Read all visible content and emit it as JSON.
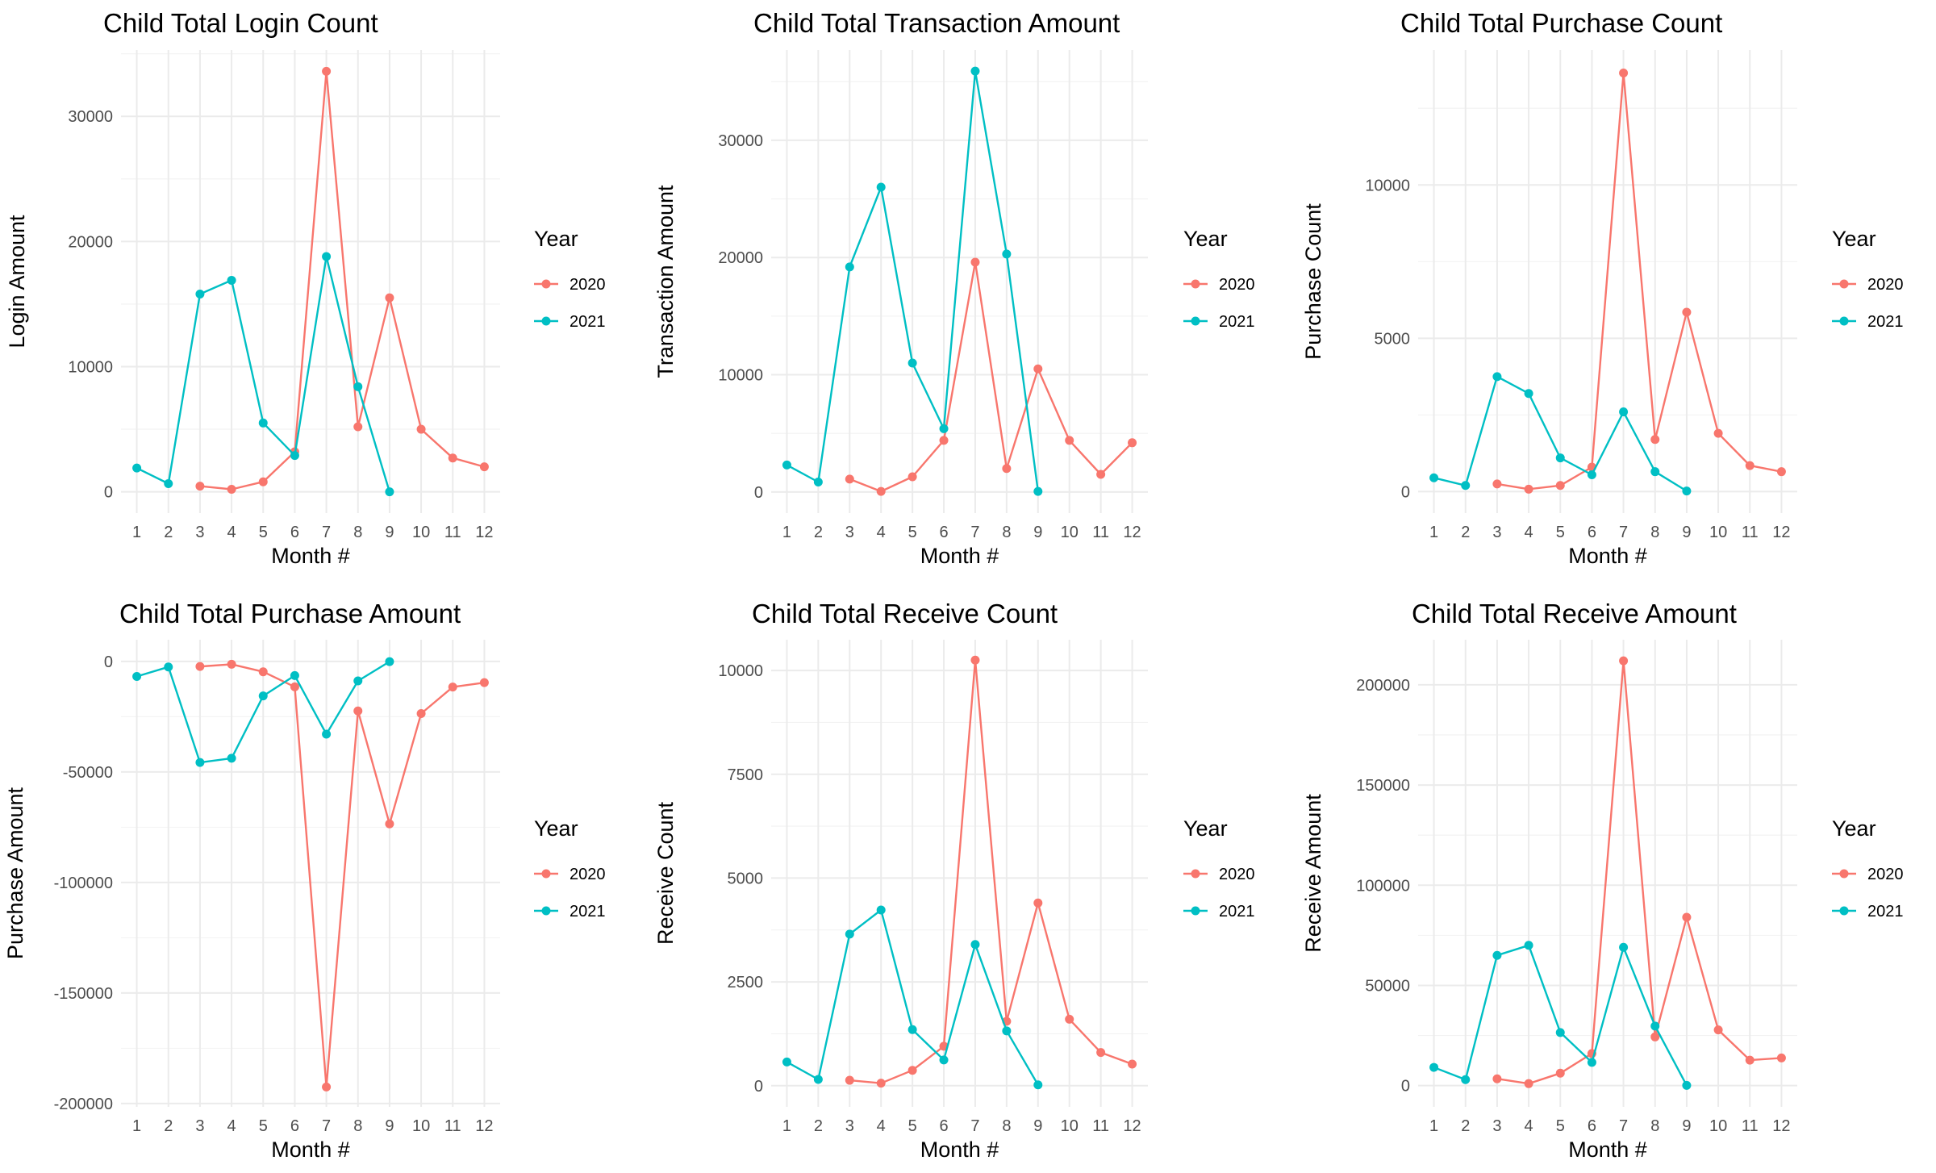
{
  "chart_data": [
    {
      "type": "line",
      "title": "Child Total Login Count",
      "xlabel": "Month #",
      "ylabel": "Login Amount",
      "x": [
        1,
        2,
        3,
        4,
        5,
        6,
        7,
        8,
        9,
        10,
        11,
        12
      ],
      "xlim": [
        0.5,
        12.5
      ],
      "ylim": [
        -1700,
        35300
      ],
      "yticks": [
        0,
        10000,
        20000,
        30000
      ],
      "ytick_labels": [
        "0",
        "10000",
        "20000",
        "30000"
      ],
      "legend": {
        "title": "Year",
        "position": "right"
      },
      "series": [
        {
          "name": "2020",
          "color": "#F8766D",
          "x": [
            3,
            4,
            5,
            6,
            7,
            8,
            9,
            10,
            11,
            12
          ],
          "values": [
            450,
            200,
            800,
            3200,
            33600,
            5200,
            15500,
            5000,
            2700,
            2000
          ]
        },
        {
          "name": "2021",
          "color": "#00BFC4",
          "x": [
            1,
            2,
            3,
            4,
            5,
            6,
            7,
            8,
            9
          ],
          "values": [
            1900,
            650,
            15800,
            16900,
            5500,
            2900,
            18800,
            8400,
            0
          ]
        }
      ]
    },
    {
      "type": "line",
      "title": "Child Total Transaction Amount",
      "xlabel": "Month #",
      "ylabel": "Transaction Amount",
      "x": [
        1,
        2,
        3,
        4,
        5,
        6,
        7,
        8,
        9,
        10,
        11,
        12
      ],
      "xlim": [
        0.5,
        12.5
      ],
      "ylim": [
        -1800,
        37700
      ],
      "yticks": [
        0,
        10000,
        20000,
        30000
      ],
      "ytick_labels": [
        "0",
        "10000",
        "20000",
        "30000"
      ],
      "legend": {
        "title": "Year",
        "position": "right"
      },
      "series": [
        {
          "name": "2020",
          "color": "#F8766D",
          "x": [
            3,
            4,
            5,
            6,
            7,
            8,
            9,
            10,
            11,
            12
          ],
          "values": [
            1100,
            50,
            1300,
            4400,
            19600,
            2000,
            10500,
            4400,
            1500,
            4200
          ]
        },
        {
          "name": "2021",
          "color": "#00BFC4",
          "x": [
            1,
            2,
            3,
            4,
            5,
            6,
            7,
            8,
            9
          ],
          "values": [
            2300,
            850,
            19200,
            26000,
            11000,
            5400,
            35900,
            20300,
            50
          ]
        }
      ]
    },
    {
      "type": "line",
      "title": "Child Total Purchase Count",
      "xlabel": "Month #",
      "ylabel": "Purchase Count",
      "x": [
        1,
        2,
        3,
        4,
        5,
        6,
        7,
        8,
        9,
        10,
        11,
        12
      ],
      "xlim": [
        0.5,
        12.5
      ],
      "ylim": [
        -700,
        14400
      ],
      "yticks": [
        0,
        5000,
        10000
      ],
      "ytick_labels": [
        "0",
        "5000",
        "10000"
      ],
      "legend": {
        "title": "Year",
        "position": "right"
      },
      "series": [
        {
          "name": "2020",
          "color": "#F8766D",
          "x": [
            3,
            4,
            5,
            6,
            7,
            8,
            9,
            10,
            11,
            12
          ],
          "values": [
            250,
            80,
            200,
            800,
            13650,
            1700,
            5850,
            1900,
            850,
            650
          ]
        },
        {
          "name": "2021",
          "color": "#00BFC4",
          "x": [
            1,
            2,
            3,
            4,
            5,
            6,
            7,
            8,
            9
          ],
          "values": [
            450,
            200,
            3750,
            3200,
            1100,
            550,
            2600,
            650,
            20
          ]
        }
      ]
    },
    {
      "type": "line",
      "title": "Child Total Purchase Amount",
      "xlabel": "Month #",
      "ylabel": "Purchase Amount",
      "x": [
        1,
        2,
        3,
        4,
        5,
        6,
        7,
        8,
        9,
        10,
        11,
        12
      ],
      "xlim": [
        0.5,
        12.5
      ],
      "ylim": [
        -201500,
        9800
      ],
      "yticks": [
        -200000,
        -150000,
        -100000,
        -50000,
        0
      ],
      "ytick_labels": [
        "-200000",
        "-150000",
        "-100000",
        "-50000",
        "0"
      ],
      "legend": {
        "title": "Year",
        "position": "right"
      },
      "series": [
        {
          "name": "2020",
          "color": "#F8766D",
          "x": [
            3,
            4,
            5,
            6,
            7,
            8,
            9,
            10,
            11,
            12
          ],
          "values": [
            -2300,
            -1300,
            -4700,
            -11500,
            -192500,
            -22400,
            -73500,
            -23600,
            -11600,
            -9600
          ]
        },
        {
          "name": "2021",
          "color": "#00BFC4",
          "x": [
            1,
            2,
            3,
            4,
            5,
            6,
            7,
            8,
            9
          ],
          "values": [
            -6800,
            -2500,
            -45700,
            -43800,
            -15600,
            -6400,
            -32900,
            -8800,
            -100
          ]
        }
      ]
    },
    {
      "type": "line",
      "title": "Child Total Receive Count",
      "xlabel": "Month #",
      "ylabel": "Receive Count",
      "x": [
        1,
        2,
        3,
        4,
        5,
        6,
        7,
        8,
        9,
        10,
        11,
        12
      ],
      "xlim": [
        0.5,
        12.5
      ],
      "ylim": [
        -510,
        10740
      ],
      "yticks": [
        0,
        2500,
        5000,
        7500,
        10000
      ],
      "ytick_labels": [
        "0",
        "2500",
        "5000",
        "7500",
        "10000"
      ],
      "legend": {
        "title": "Year",
        "position": "right"
      },
      "series": [
        {
          "name": "2020",
          "color": "#F8766D",
          "x": [
            3,
            4,
            5,
            6,
            7,
            8,
            9,
            10,
            11,
            12
          ],
          "values": [
            130,
            60,
            370,
            950,
            10250,
            1550,
            4400,
            1600,
            800,
            520
          ]
        },
        {
          "name": "2021",
          "color": "#00BFC4",
          "x": [
            1,
            2,
            3,
            4,
            5,
            6,
            7,
            8,
            9
          ],
          "values": [
            570,
            150,
            3650,
            4230,
            1350,
            620,
            3400,
            1320,
            20
          ]
        }
      ]
    },
    {
      "type": "line",
      "title": "Child Total Receive Amount",
      "xlabel": "Month #",
      "ylabel": "Receive Amount",
      "x": [
        1,
        2,
        3,
        4,
        5,
        6,
        7,
        8,
        9,
        10,
        11,
        12
      ],
      "xlim": [
        0.5,
        12.5
      ],
      "ylim": [
        -10600,
        222500
      ],
      "yticks": [
        0,
        50000,
        100000,
        150000,
        200000
      ],
      "ytick_labels": [
        "0",
        "50000",
        "100000",
        "150000",
        "200000"
      ],
      "legend": {
        "title": "Year",
        "position": "right"
      },
      "series": [
        {
          "name": "2020",
          "color": "#F8766D",
          "x": [
            3,
            4,
            5,
            6,
            7,
            8,
            9,
            10,
            11,
            12
          ],
          "values": [
            3400,
            1000,
            6200,
            16000,
            212000,
            24300,
            84000,
            27800,
            12700,
            13800
          ]
        },
        {
          "name": "2021",
          "color": "#00BFC4",
          "x": [
            1,
            2,
            3,
            4,
            5,
            6,
            7,
            8,
            9
          ],
          "values": [
            9100,
            3000,
            65000,
            70000,
            26500,
            11600,
            69000,
            29700,
            100
          ]
        }
      ]
    }
  ]
}
